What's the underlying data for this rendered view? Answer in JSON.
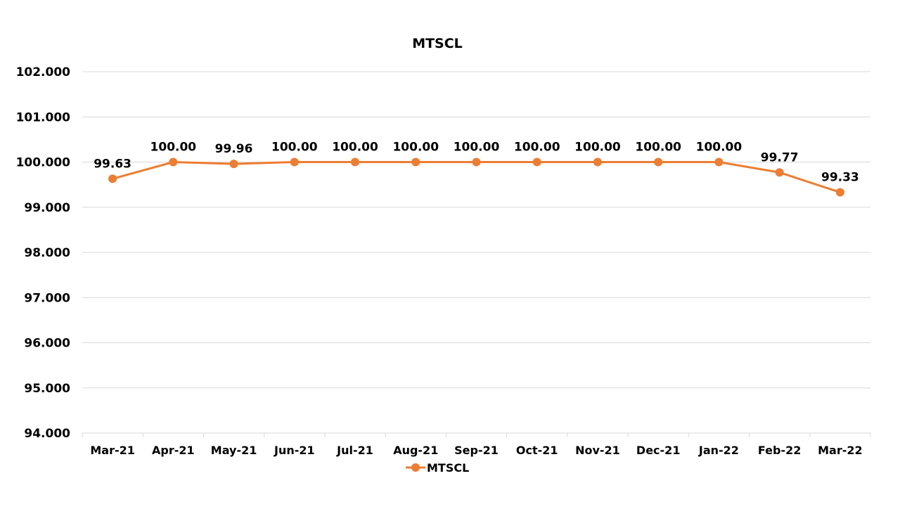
{
  "chart_data": {
    "type": "line",
    "title": "MTSCL",
    "xlabel": "",
    "ylabel": "",
    "categories": [
      "Mar-21",
      "Apr-21",
      "May-21",
      "Jun-21",
      "Jul-21",
      "Aug-21",
      "Sep-21",
      "Oct-21",
      "Nov-21",
      "Dec-21",
      "Jan-22",
      "Feb-22",
      "Mar-22"
    ],
    "series": [
      {
        "name": "MTSCL",
        "values": [
          99.63,
          100.0,
          99.96,
          100.0,
          100.0,
          100.0,
          100.0,
          100.0,
          100.0,
          100.0,
          100.0,
          99.77,
          99.33
        ],
        "data_labels": [
          "99.63",
          "100.00",
          "99.96",
          "100.00",
          "100.00",
          "100.00",
          "100.00",
          "100.00",
          "100.00",
          "100.00",
          "100.00",
          "99.77",
          "99.33"
        ],
        "color": "#ED7D31"
      }
    ],
    "ylim": [
      94,
      102
    ],
    "y_ticks": [
      94,
      95,
      96,
      97,
      98,
      99,
      100,
      101,
      102
    ],
    "y_tick_labels": [
      "94.000",
      "95.000",
      "96.000",
      "97.000",
      "98.000",
      "99.000",
      "100.000",
      "101.000",
      "102.000"
    ],
    "grid": true,
    "legend": "bottom",
    "gridline_color": "#D9D9D9",
    "axis_color": "#D9D9D9"
  }
}
